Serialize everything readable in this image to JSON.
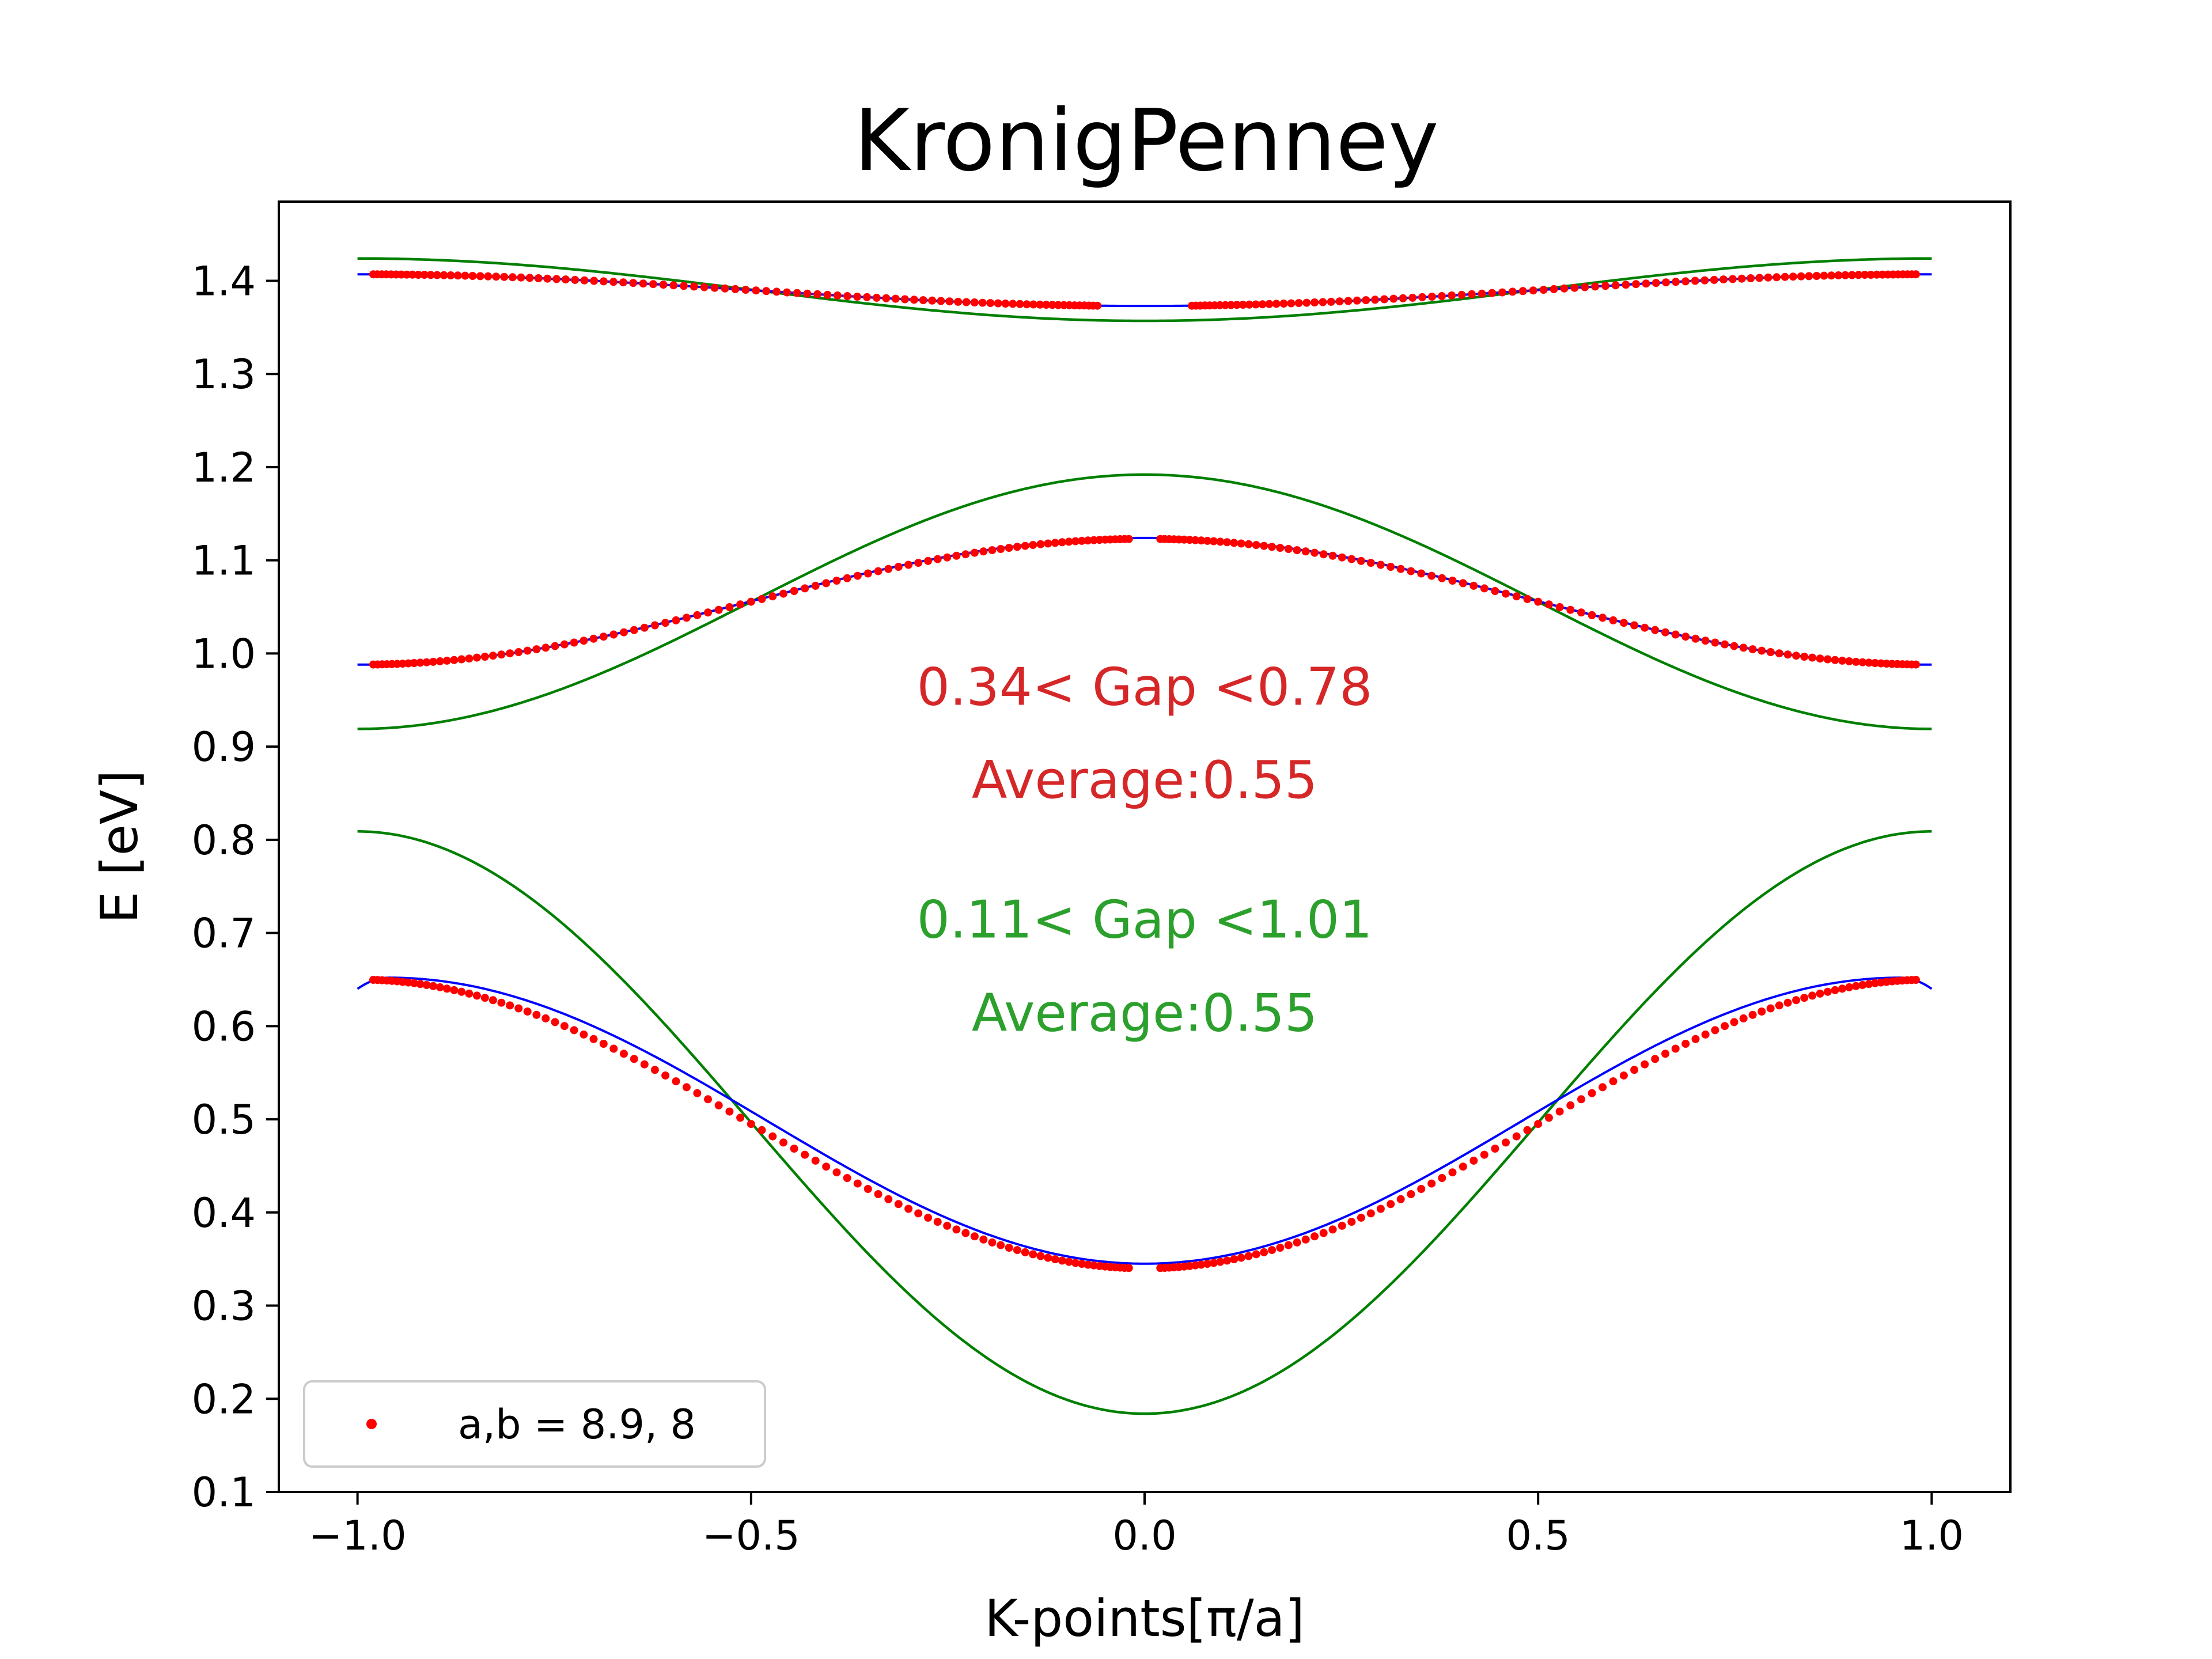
{
  "chart_data": {
    "type": "line",
    "title": "KronigPenney",
    "xlabel": "K-points[π/a]",
    "ylabel": "E [eV]",
    "xlim": [
      -1.1,
      1.1
    ],
    "ylim": [
      0.1,
      1.485
    ],
    "xticks": [
      -1.0,
      -0.5,
      0.0,
      0.5,
      1.0
    ],
    "xtick_labels": [
      "−1.0",
      "−0.5",
      "0.0",
      "0.5",
      "1.0"
    ],
    "yticks": [
      0.1,
      0.2,
      0.3,
      0.4,
      0.5,
      0.6,
      0.7,
      0.8,
      0.9,
      1.0,
      1.1,
      1.2,
      1.3,
      1.4
    ],
    "ytick_labels": [
      "0.1",
      "0.2",
      "0.3",
      "0.4",
      "0.5",
      "0.6",
      "0.7",
      "0.8",
      "0.9",
      "1.0",
      "1.1",
      "1.2",
      "1.3",
      "1.4"
    ],
    "grid": false,
    "legend": {
      "position": "lower-left",
      "entries": [
        {
          "label": "a,b = 8.9, 8",
          "color": "#ff0000",
          "marker": "dot"
        }
      ]
    },
    "colors": {
      "scatter": "#ff0000",
      "fit": "#0000ff",
      "tight_binding": "#007f00",
      "ann_red": "#d62728",
      "ann_green": "#2ca02c"
    },
    "series": [
      {
        "role": "scatter",
        "band": 1,
        "type": "scatter",
        "x_range": [
          -0.98,
          0.98
        ],
        "gap_at_zero": 0.02,
        "E_center": 0.34,
        "E_edge": 0.65,
        "color": "#ff0000"
      },
      {
        "role": "scatter",
        "band": 2,
        "type": "scatter",
        "x_range": [
          -0.98,
          0.98
        ],
        "gap_at_zero": 0.02,
        "E_center": 1.123,
        "E_edge": 0.988,
        "color": "#ff0000"
      },
      {
        "role": "scatter",
        "band": 3,
        "type": "scatter",
        "x_range": [
          -0.98,
          0.98
        ],
        "gap_at_zero": 0.06,
        "E_center": 1.373,
        "E_edge": 1.407,
        "color": "#ff0000"
      },
      {
        "role": "fit",
        "band": 1,
        "type": "line",
        "x_range": [
          -1.0,
          1.0
        ],
        "E_center": 0.345,
        "E_peak": 0.652,
        "peak_at": 0.96,
        "E_end": 0.64,
        "color": "#0000ff"
      },
      {
        "role": "fit",
        "band": 2,
        "type": "line",
        "x_range": [
          -1.0,
          1.0
        ],
        "E_center": 1.124,
        "E_edge": 0.988,
        "color": "#0000ff"
      },
      {
        "role": "fit",
        "band": 3,
        "type": "line",
        "x_range": [
          -1.0,
          1.0
        ],
        "E_center": 1.373,
        "E_edge": 1.407,
        "color": "#0000ff"
      },
      {
        "role": "tight_binding",
        "band": 1,
        "type": "line",
        "x_range": [
          -1.0,
          1.0
        ],
        "E_center": 0.184,
        "E_edge": 0.809,
        "color": "#007f00"
      },
      {
        "role": "tight_binding",
        "band": 2,
        "type": "line",
        "x_range": [
          -1.0,
          1.0
        ],
        "E_center": 1.192,
        "E_edge": 0.919,
        "color": "#007f00"
      },
      {
        "role": "tight_binding",
        "band": 3,
        "type": "line",
        "x_range": [
          -1.0,
          1.0
        ],
        "E_center": 1.357,
        "E_edge": 1.424,
        "color": "#007f00"
      }
    ],
    "annotations": [
      {
        "text": "0.34< Gap <0.78",
        "x": 0.0,
        "y": 0.945,
        "color": "#d62728"
      },
      {
        "text": "Average:0.55",
        "x": 0.0,
        "y": 0.845,
        "color": "#d62728"
      },
      {
        "text": "0.11< Gap <1.01",
        "x": 0.0,
        "y": 0.695,
        "color": "#2ca02c"
      },
      {
        "text": "Average:0.55",
        "x": 0.0,
        "y": 0.595,
        "color": "#2ca02c"
      }
    ]
  }
}
